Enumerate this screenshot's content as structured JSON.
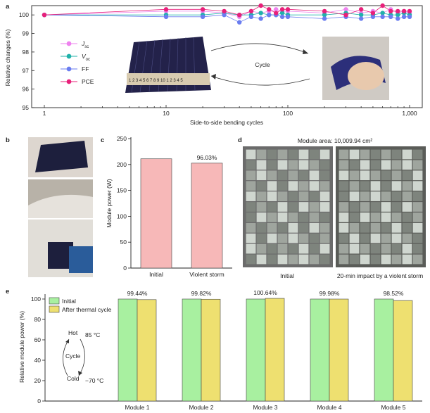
{
  "chart_data": [
    {
      "panel": "a",
      "type": "line",
      "xlabel": "Side-to-side bending cycles",
      "ylabel": "Relative changes (%)",
      "xscale": "log",
      "xlim": [
        1,
        1000
      ],
      "ylim": [
        95,
        100.5
      ],
      "xticks": [
        "1",
        "10",
        "100",
        "1,000"
      ],
      "yticks": [
        "95",
        "96",
        "97",
        "98",
        "99",
        "100"
      ],
      "x": [
        1,
        10,
        20,
        30,
        40,
        50,
        60,
        70,
        80,
        90,
        100,
        200,
        300,
        400,
        500,
        600,
        700,
        800,
        900,
        1000
      ],
      "series": [
        {
          "name": "Jsc",
          "label_main": "J",
          "label_sub": "sc",
          "color": "#ee82ee",
          "values": [
            100,
            100.2,
            100.2,
            100.1,
            99.9,
            100.2,
            100.1,
            100.2,
            100.3,
            100.2,
            100.2,
            100.1,
            100.3,
            100.1,
            100.2,
            100.1,
            100.3,
            100.1,
            100.2,
            100.1
          ]
        },
        {
          "name": "Voc",
          "label_main": "V",
          "label_sub": "oc",
          "color": "#20b2aa",
          "values": [
            100,
            100.0,
            100.0,
            100.1,
            100.0,
            100.0,
            100.1,
            100.0,
            100.0,
            100.1,
            100.0,
            100.0,
            100.1,
            100.0,
            100.0,
            100.1,
            100.0,
            100.0,
            100.1,
            100.0
          ]
        },
        {
          "name": "FF",
          "label_main": "FF",
          "label_sub": "",
          "color": "#6a7df0",
          "values": [
            100,
            99.9,
            99.9,
            100.0,
            99.6,
            99.9,
            99.8,
            100.0,
            100.0,
            99.9,
            99.9,
            99.8,
            99.9,
            99.8,
            99.9,
            99.9,
            99.9,
            99.8,
            99.9,
            99.9
          ]
        },
        {
          "name": "PCE",
          "label_main": "PCE",
          "label_sub": "",
          "color": "#e8207a",
          "values": [
            100,
            100.3,
            100.3,
            100.2,
            100.0,
            100.2,
            100.5,
            100.3,
            100.1,
            100.3,
            100.3,
            100.2,
            100.0,
            100.3,
            100.1,
            100.5,
            100.2,
            100.2,
            100.2,
            100.2
          ]
        }
      ],
      "inset_cycle_label": "Cycle",
      "ruler_text": "1 2 3 4 5 6 7 8 9 10 1 2 3 4 5"
    },
    {
      "panel": "c",
      "type": "bar",
      "ylabel": "Module power (W)",
      "ylim": [
        0,
        250
      ],
      "yticks": [
        "0",
        "50",
        "100",
        "150",
        "200",
        "250"
      ],
      "categories": [
        "Initial",
        "Violent storm"
      ],
      "values": [
        211,
        202.6
      ],
      "bar_color": "#f7b8b8",
      "annotations": [
        "",
        "96.03%"
      ]
    },
    {
      "panel": "e",
      "type": "bar",
      "ylabel": "Relative module power (%)",
      "ylim": [
        0,
        100
      ],
      "yticks": [
        "0",
        "20",
        "40",
        "60",
        "80",
        "100"
      ],
      "categories": [
        "Module 1",
        "Module 2",
        "Module 3",
        "Module 4",
        "Module 5"
      ],
      "series": [
        {
          "name": "Initial",
          "color": "#a8f0a0",
          "values": [
            100,
            100,
            100,
            100,
            100
          ]
        },
        {
          "name": "After thermal cycle",
          "color": "#eee070",
          "values": [
            99.44,
            99.82,
            100.64,
            99.98,
            98.52
          ]
        }
      ],
      "annotations": [
        "99.44%",
        "99.82%",
        "100.64%",
        "99.98%",
        "98.52%"
      ],
      "cycle_diagram": {
        "hot": "Hot",
        "hot_temp": "85 °C",
        "center": "Cycle",
        "cold": "Cold",
        "cold_temp": "−70 °C"
      }
    }
  ],
  "panels": {
    "a": "a",
    "b": "b",
    "c": "c",
    "d": "d",
    "e": "e"
  },
  "panel_d": {
    "title": "Module area: 10,009.94 cm²",
    "label_left": "Initial",
    "label_right": "20-min impact by a violent storm"
  }
}
